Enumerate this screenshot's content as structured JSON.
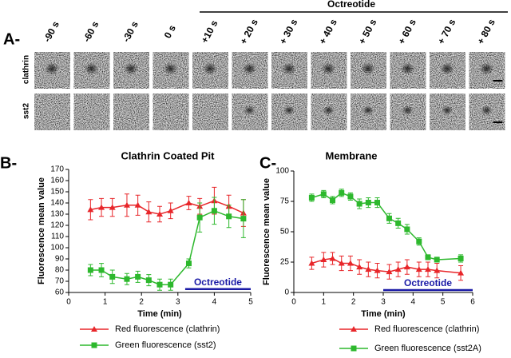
{
  "panel_a": {
    "label": "A-",
    "treatment": "Octreotide",
    "time_points": [
      "-90 s",
      "-60 s",
      "-30 s",
      "0 s",
      "+10 s",
      "+ 20 s",
      "+ 30 s",
      "+ 40 s",
      "+ 50 s",
      "+ 60 s",
      "+ 70 s",
      "+ 80 s"
    ],
    "rows": [
      "clathrin",
      "sst2"
    ]
  },
  "chart_data": [
    {
      "type": "line",
      "panel_label": "B-",
      "title": "Clathrin Coated Pit",
      "x_label": "Time (min)",
      "y_label": "Fluorescence mean value",
      "x": [
        0.6,
        0.9,
        1.2,
        1.6,
        1.9,
        2.2,
        2.5,
        2.8,
        3.3,
        3.6,
        4.0,
        4.4,
        4.8
      ],
      "series": [
        {
          "name": "Red fluorescence (clathrin)",
          "color": "#e8262a",
          "marker": "triangle",
          "values": [
            134,
            136,
            136,
            138,
            138,
            132,
            130,
            133,
            140,
            137,
            142,
            137,
            131
          ],
          "errors": [
            9,
            8,
            8,
            10,
            9,
            9,
            7,
            7,
            6,
            7,
            12,
            10,
            12
          ]
        },
        {
          "name": "Green fluorescence (sst2)",
          "color": "#2db82d",
          "marker": "square",
          "values": [
            80,
            80,
            74,
            72,
            74,
            71,
            67,
            67,
            86,
            127,
            133,
            128,
            126
          ],
          "errors": [
            5,
            6,
            6,
            5,
            5,
            5,
            5,
            5,
            4,
            13,
            12,
            10,
            17
          ]
        }
      ],
      "xlim": [
        0,
        5
      ],
      "ylim": [
        60,
        170
      ],
      "xticks": [
        0,
        1,
        2,
        3,
        4,
        5
      ],
      "yticks": [
        60,
        70,
        80,
        90,
        100,
        110,
        120,
        130,
        140,
        150,
        160,
        170
      ],
      "annotation": {
        "text": "Octreotide",
        "x_start": 3.2,
        "x_end": 5,
        "y": 63,
        "color": "#1a1aa6"
      }
    },
    {
      "type": "line",
      "panel_label": "C-",
      "title": "Membrane",
      "x_label": "Time (min)",
      "y_label": "Fluorescence mean value",
      "x": [
        0.6,
        1.0,
        1.3,
        1.6,
        1.9,
        2.2,
        2.5,
        2.8,
        3.2,
        3.5,
        3.8,
        4.2,
        4.5,
        4.8,
        5.6
      ],
      "series": [
        {
          "name": "Red fluorescence (clathrin)",
          "color": "#e8262a",
          "marker": "triangle",
          "values": [
            24,
            27,
            28,
            24,
            24,
            21,
            19,
            18,
            17,
            19,
            21,
            19,
            19,
            18,
            16
          ],
          "errors": [
            5,
            6,
            5,
            6,
            6,
            6,
            6,
            6,
            6,
            6,
            6,
            6,
            6,
            6,
            6
          ]
        },
        {
          "name": "Green fluorescence (sst2A)",
          "color": "#2db82d",
          "marker": "square",
          "values": [
            78,
            81,
            76,
            82,
            79,
            73,
            74,
            74,
            61,
            57,
            52,
            42,
            29,
            27,
            28
          ],
          "errors": [
            3,
            3,
            3,
            3,
            3,
            4,
            4,
            4,
            4,
            4,
            4,
            3,
            2,
            2,
            3
          ]
        }
      ],
      "xlim": [
        0,
        6
      ],
      "ylim": [
        0,
        100
      ],
      "xticks": [
        0,
        1,
        2,
        3,
        4,
        5,
        6
      ],
      "yticks": [
        0,
        25,
        50,
        75,
        100
      ],
      "annotation": {
        "text": "Octreotide",
        "x_start": 3,
        "x_end": 6,
        "y": 2,
        "color": "#1a1aa6"
      }
    }
  ]
}
